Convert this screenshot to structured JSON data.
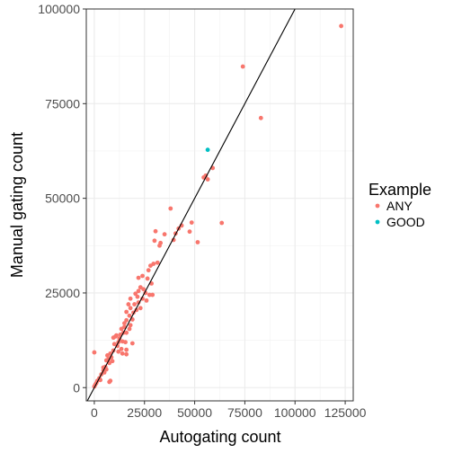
{
  "chart_data": {
    "type": "scatter",
    "title": "",
    "xlabel": "Autogating count",
    "ylabel": "Manual gating count",
    "xlim": [
      -4000,
      129000
    ],
    "ylim": [
      -3500,
      100000
    ],
    "x_ticks": [
      0,
      25000,
      50000,
      75000,
      100000,
      125000
    ],
    "x_tick_labels": [
      "0",
      "25000",
      "50000",
      "75000",
      "100000",
      "125000"
    ],
    "y_ticks": [
      0,
      25000,
      50000,
      75000,
      100000
    ],
    "y_tick_labels": [
      "0",
      "25000",
      "50000",
      "75000",
      "100000"
    ],
    "grid": true,
    "legend": {
      "title": "Example",
      "position": "right",
      "entries": [
        {
          "name": "ANY",
          "color": "#F8766D"
        },
        {
          "name": "GOOD",
          "color": "#00BFC4"
        }
      ]
    },
    "reference_line": {
      "slope": 1,
      "intercept": 0,
      "color": "#000000"
    },
    "series": [
      {
        "name": "ANY",
        "color": "#F8766D",
        "points": [
          [
            123000,
            95500
          ],
          [
            74000,
            84800
          ],
          [
            83000,
            71200
          ],
          [
            59000,
            58000
          ],
          [
            55500,
            56000
          ],
          [
            54500,
            55500
          ],
          [
            56500,
            55000
          ],
          [
            63500,
            43500
          ],
          [
            38000,
            47300
          ],
          [
            48500,
            43600
          ],
          [
            43500,
            42800
          ],
          [
            42000,
            42000
          ],
          [
            40500,
            40700
          ],
          [
            47500,
            41200
          ],
          [
            39500,
            39000
          ],
          [
            30500,
            41300
          ],
          [
            35000,
            40500
          ],
          [
            30000,
            38800
          ],
          [
            33000,
            38200
          ],
          [
            32500,
            37500
          ],
          [
            51500,
            38400
          ],
          [
            31500,
            33000
          ],
          [
            29500,
            32700
          ],
          [
            28000,
            32200
          ],
          [
            27000,
            31000
          ],
          [
            24000,
            29500
          ],
          [
            22000,
            29000
          ],
          [
            26500,
            28800
          ],
          [
            28500,
            27500
          ],
          [
            23000,
            26500
          ],
          [
            24500,
            26000
          ],
          [
            22000,
            25500
          ],
          [
            25500,
            25000
          ],
          [
            27500,
            24500
          ],
          [
            20500,
            24800
          ],
          [
            21500,
            24000
          ],
          [
            24000,
            23500
          ],
          [
            26000,
            23000
          ],
          [
            22000,
            22500
          ],
          [
            18000,
            23500
          ],
          [
            29000,
            24500
          ],
          [
            20000,
            22000
          ],
          [
            17000,
            22000
          ],
          [
            23000,
            21000
          ],
          [
            21000,
            20500
          ],
          [
            18000,
            21000
          ],
          [
            19500,
            19800
          ],
          [
            17500,
            19000
          ],
          [
            16000,
            20000
          ],
          [
            19000,
            18000
          ],
          [
            16000,
            17800
          ],
          [
            15000,
            17000
          ],
          [
            18000,
            16500
          ],
          [
            17500,
            15500
          ],
          [
            15000,
            16000
          ],
          [
            13500,
            15500
          ],
          [
            14500,
            14500
          ],
          [
            16000,
            14500
          ],
          [
            13000,
            14000
          ],
          [
            11000,
            13800
          ],
          [
            12500,
            13000
          ],
          [
            10500,
            13500
          ],
          [
            9500,
            13200
          ],
          [
            15500,
            12000
          ],
          [
            14000,
            12200
          ],
          [
            12000,
            12000
          ],
          [
            10000,
            11500
          ],
          [
            11500,
            11000
          ],
          [
            19000,
            11700
          ],
          [
            16000,
            10000
          ],
          [
            13500,
            10200
          ],
          [
            12000,
            9500
          ],
          [
            9500,
            9800
          ],
          [
            8000,
            9000
          ],
          [
            6500,
            8500
          ],
          [
            14000,
            9000
          ],
          [
            16000,
            8800
          ],
          [
            0,
            9300
          ],
          [
            8500,
            8000
          ],
          [
            7000,
            7500
          ],
          [
            9000,
            7000
          ],
          [
            6000,
            7200
          ],
          [
            7500,
            6500
          ],
          [
            5500,
            5500
          ],
          [
            4500,
            5300
          ],
          [
            6000,
            4800
          ],
          [
            4500,
            4500
          ],
          [
            5000,
            4000
          ],
          [
            3500,
            3500
          ],
          [
            2500,
            2500
          ],
          [
            1500,
            1800
          ],
          [
            3000,
            2000
          ],
          [
            1000,
            1200
          ],
          [
            500,
            800
          ],
          [
            0,
            300
          ],
          [
            8000,
            1800
          ],
          [
            7500,
            1500
          ]
        ]
      },
      {
        "name": "GOOD",
        "color": "#00BFC4",
        "points": [
          [
            56500,
            62800
          ]
        ]
      }
    ]
  }
}
